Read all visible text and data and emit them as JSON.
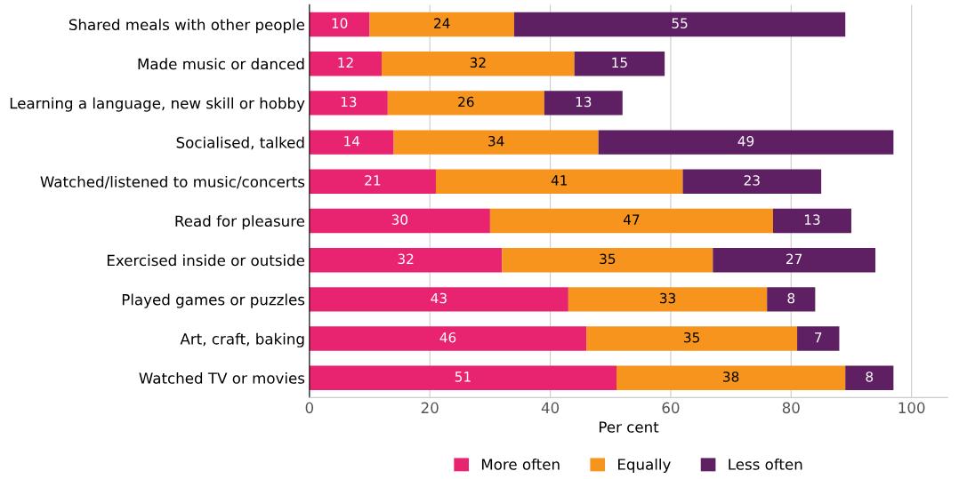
{
  "chart_data": {
    "type": "bar",
    "orientation": "horizontal",
    "stacked": true,
    "xlabel": "Per cent",
    "categories": [
      "Shared meals with other people",
      "Made music or danced",
      "Learning a language, new skill or hobby",
      "Socialised, talked",
      "Watched/listened to music/concerts",
      "Read for pleasure",
      "Exercised inside or outside",
      "Played games or puzzles",
      "Art, craft, baking",
      "Watched TV or movies"
    ],
    "series": [
      {
        "name": "More often",
        "color": "#e8236f",
        "values": [
          10,
          12,
          13,
          14,
          21,
          30,
          32,
          43,
          46,
          51
        ]
      },
      {
        "name": "Equally",
        "color": "#f7941d",
        "values": [
          24,
          32,
          26,
          34,
          41,
          47,
          35,
          33,
          35,
          38
        ]
      },
      {
        "name": "Less often",
        "color": "#5e2063",
        "values": [
          55,
          15,
          13,
          49,
          23,
          13,
          27,
          8,
          7,
          8
        ]
      }
    ],
    "xlim": [
      0,
      106
    ],
    "xticks": [
      0,
      20,
      40,
      60,
      80,
      100
    ],
    "grid": "x",
    "legend": "bottom",
    "data_labels": true
  }
}
